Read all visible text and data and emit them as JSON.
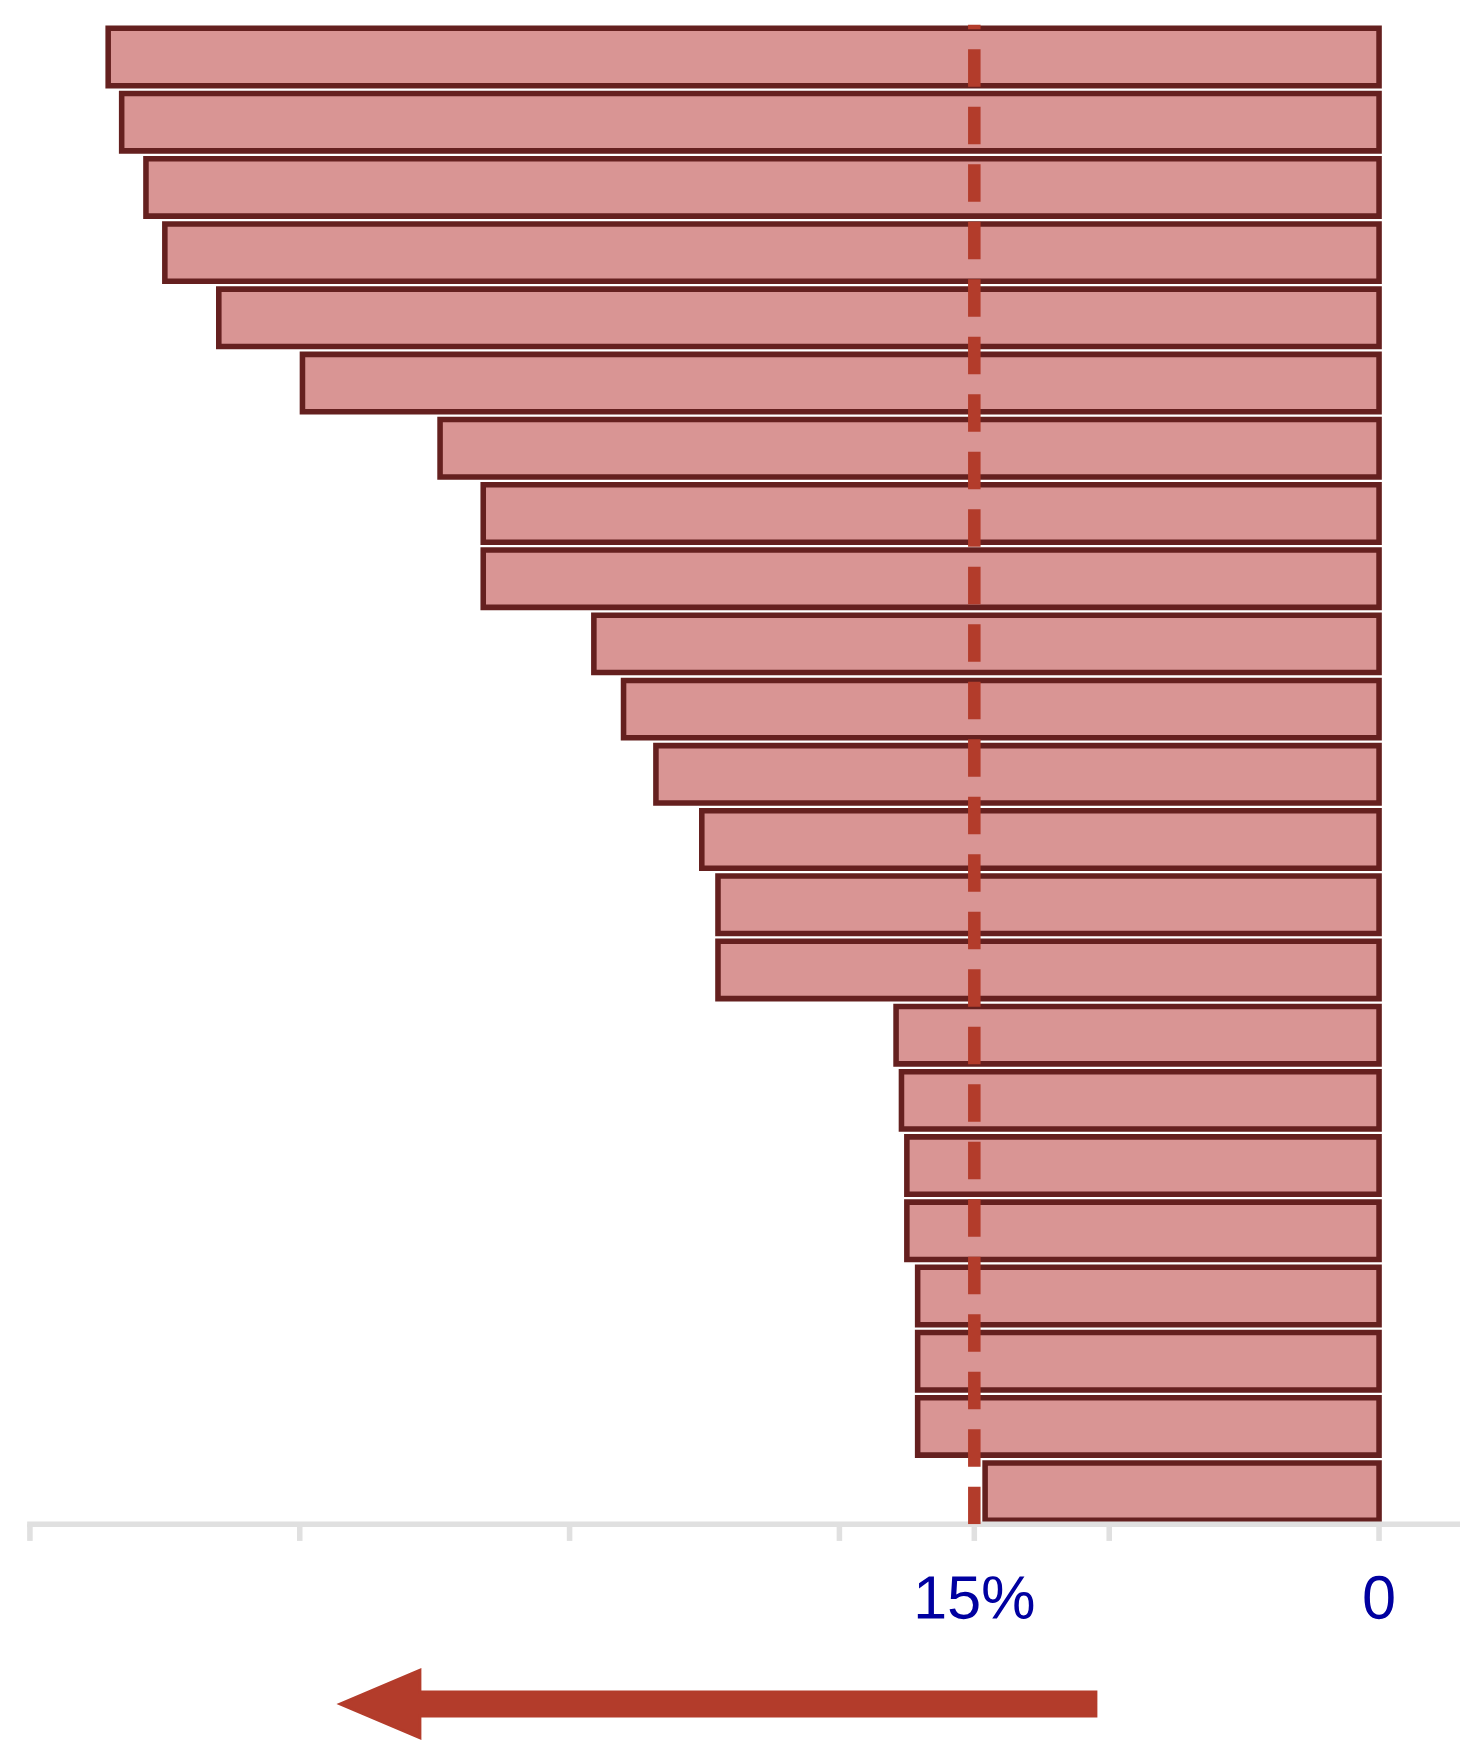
{
  "chart_data": {
    "type": "bar",
    "orientation": "horizontal",
    "color": "#d99594",
    "categories": [
      null,
      null,
      null,
      null,
      null,
      null,
      null,
      null,
      null,
      null,
      null,
      null,
      null,
      null,
      null,
      null,
      null,
      null,
      null,
      null,
      null,
      null,
      null
    ],
    "values": [
      47.1,
      46.6,
      45.7,
      45.0,
      43.0,
      39.9,
      34.8,
      33.2,
      33.2,
      29.1,
      28.0,
      26.8,
      25.1,
      24.5,
      24.5,
      17.9,
      17.7,
      17.5,
      17.5,
      17.1,
      17.1,
      17.1,
      14.6
    ],
    "xlim": [
      50,
      -3
    ],
    "xticks": [
      {
        "value": 50,
        "label": null
      },
      {
        "value": 40,
        "label": null
      },
      {
        "value": 30,
        "label": null
      },
      {
        "value": 20,
        "label": null
      },
      {
        "value": 15,
        "label": "15%"
      },
      {
        "value": 10,
        "label": null
      },
      {
        "value": 0,
        "label": "0"
      }
    ],
    "ref_lines": [
      {
        "axis": "x",
        "value": 15,
        "color": "#b33c2b",
        "line_style": "dashed"
      }
    ]
  }
}
